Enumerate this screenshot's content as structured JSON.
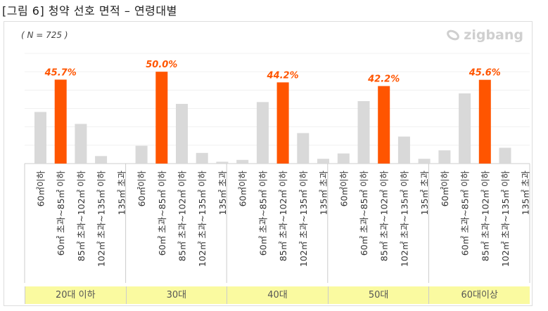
{
  "title": "[그림 6] 청약 선호 면적 – 연령대별",
  "chart_data": {
    "type": "bar",
    "title": "청약 선호 면적 – 연령대별",
    "note": "( N = 725 )",
    "watermark": "zigbang",
    "groups": [
      "20대 이하",
      "30대",
      "40대",
      "50대",
      "60대이상"
    ],
    "categories": [
      "60㎡이하",
      "60㎡ 초과~85㎡ 이하",
      "85㎡ 초과~102㎡ 이하",
      "102㎡ 초과~135㎡ 이하",
      "135㎡ 초과"
    ],
    "values": [
      [
        28.1,
        45.7,
        21.6,
        4.1,
        0
      ],
      [
        9.7,
        50.0,
        32.5,
        5.8,
        1.0
      ],
      [
        2.0,
        33.5,
        44.2,
        16.6,
        2.6
      ],
      [
        5.5,
        34.0,
        42.2,
        14.7,
        2.6
      ],
      [
        7.2,
        38.2,
        45.6,
        8.6,
        0
      ]
    ],
    "highlight_labels": [
      "45.7%",
      "50.0%",
      "44.2%",
      "42.2%",
      "45.6%"
    ],
    "highlight_index": [
      1,
      1,
      2,
      2,
      2
    ],
    "ylim": [
      0,
      60
    ],
    "grid": true,
    "colors": {
      "highlight": "#ff5500",
      "normal": "#d9d9d9"
    }
  }
}
